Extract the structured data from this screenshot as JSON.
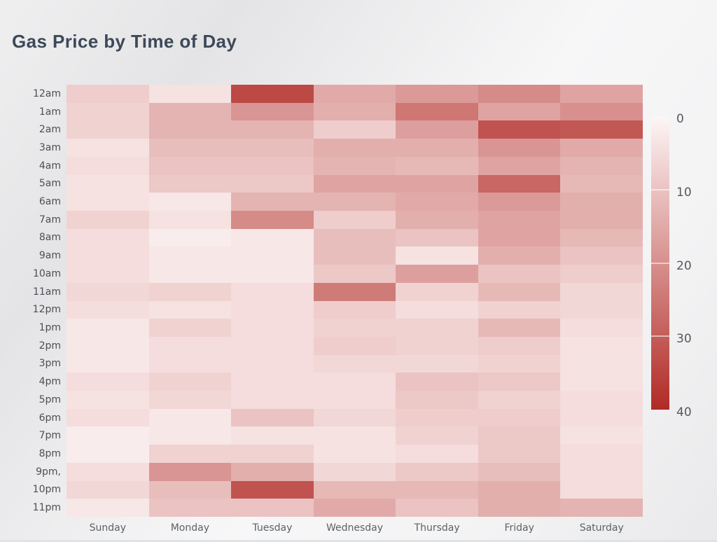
{
  "page": {
    "title_color": "#3d4959",
    "background_top": "#e5e5e7",
    "background_mid": "#f7f7f8"
  },
  "legend": {
    "ticks": [
      "0",
      "10",
      "20",
      "30",
      "40"
    ],
    "min": 0,
    "max": 40,
    "position": "right"
  },
  "chart_data": {
    "type": "heatmap",
    "title": "Gas Price by Time of Day",
    "xlabel": "",
    "ylabel": "",
    "x_categories": [
      "Sunday",
      "Monday",
      "Tuesday",
      "Wednesday",
      "Thursday",
      "Friday",
      "Saturday"
    ],
    "y_categories": [
      "12am",
      "1am",
      "2am",
      "3am",
      "4am",
      "5am",
      "6am",
      "7am",
      "8am",
      "9am",
      "10am",
      "11am",
      "12pm",
      "1pm",
      "2pm",
      "3pm",
      "4pm",
      "5pm",
      "6pm",
      "7pm",
      "8pm",
      "9pm,",
      "10pm",
      "11pm"
    ],
    "values": [
      [
        8,
        4,
        34,
        15,
        18,
        21,
        16
      ],
      [
        7,
        13,
        19,
        14,
        25,
        16,
        20
      ],
      [
        7,
        13,
        13,
        8,
        17,
        32,
        31
      ],
      [
        4,
        11,
        11,
        14,
        14,
        19,
        15
      ],
      [
        5,
        10,
        10,
        13,
        12,
        16,
        13
      ],
      [
        4,
        9,
        9,
        16,
        16,
        28,
        12
      ],
      [
        4,
        3,
        13,
        13,
        15,
        18,
        14
      ],
      [
        7,
        4,
        21,
        8,
        14,
        16,
        14
      ],
      [
        5,
        2,
        3,
        11,
        10,
        16,
        12
      ],
      [
        5,
        3,
        3,
        11,
        4,
        14,
        10
      ],
      [
        5,
        3,
        3,
        9,
        17,
        10,
        8
      ],
      [
        6,
        7,
        5,
        24,
        7,
        12,
        6
      ],
      [
        5,
        4,
        5,
        8,
        5,
        7,
        6
      ],
      [
        3,
        7,
        5,
        7,
        7,
        12,
        5
      ],
      [
        3,
        5,
        5,
        8,
        7,
        8,
        4
      ],
      [
        3,
        5,
        5,
        6,
        6,
        7,
        4
      ],
      [
        5,
        7,
        5,
        5,
        10,
        9,
        4
      ],
      [
        4,
        6,
        5,
        5,
        9,
        7,
        5
      ],
      [
        5,
        3,
        10,
        6,
        8,
        8,
        5
      ],
      [
        2,
        3,
        4,
        4,
        7,
        9,
        4
      ],
      [
        2,
        7,
        7,
        4,
        5,
        9,
        5
      ],
      [
        5,
        19,
        14,
        6,
        9,
        11,
        5
      ],
      [
        6,
        11,
        32,
        12,
        12,
        14,
        5
      ],
      [
        3,
        10,
        10,
        15,
        10,
        14,
        13
      ]
    ],
    "vmin": 0,
    "vmax": 40,
    "colormap": [
      "#fdf6f6",
      "#b12a25"
    ],
    "legend_position": "right",
    "grid": false
  }
}
